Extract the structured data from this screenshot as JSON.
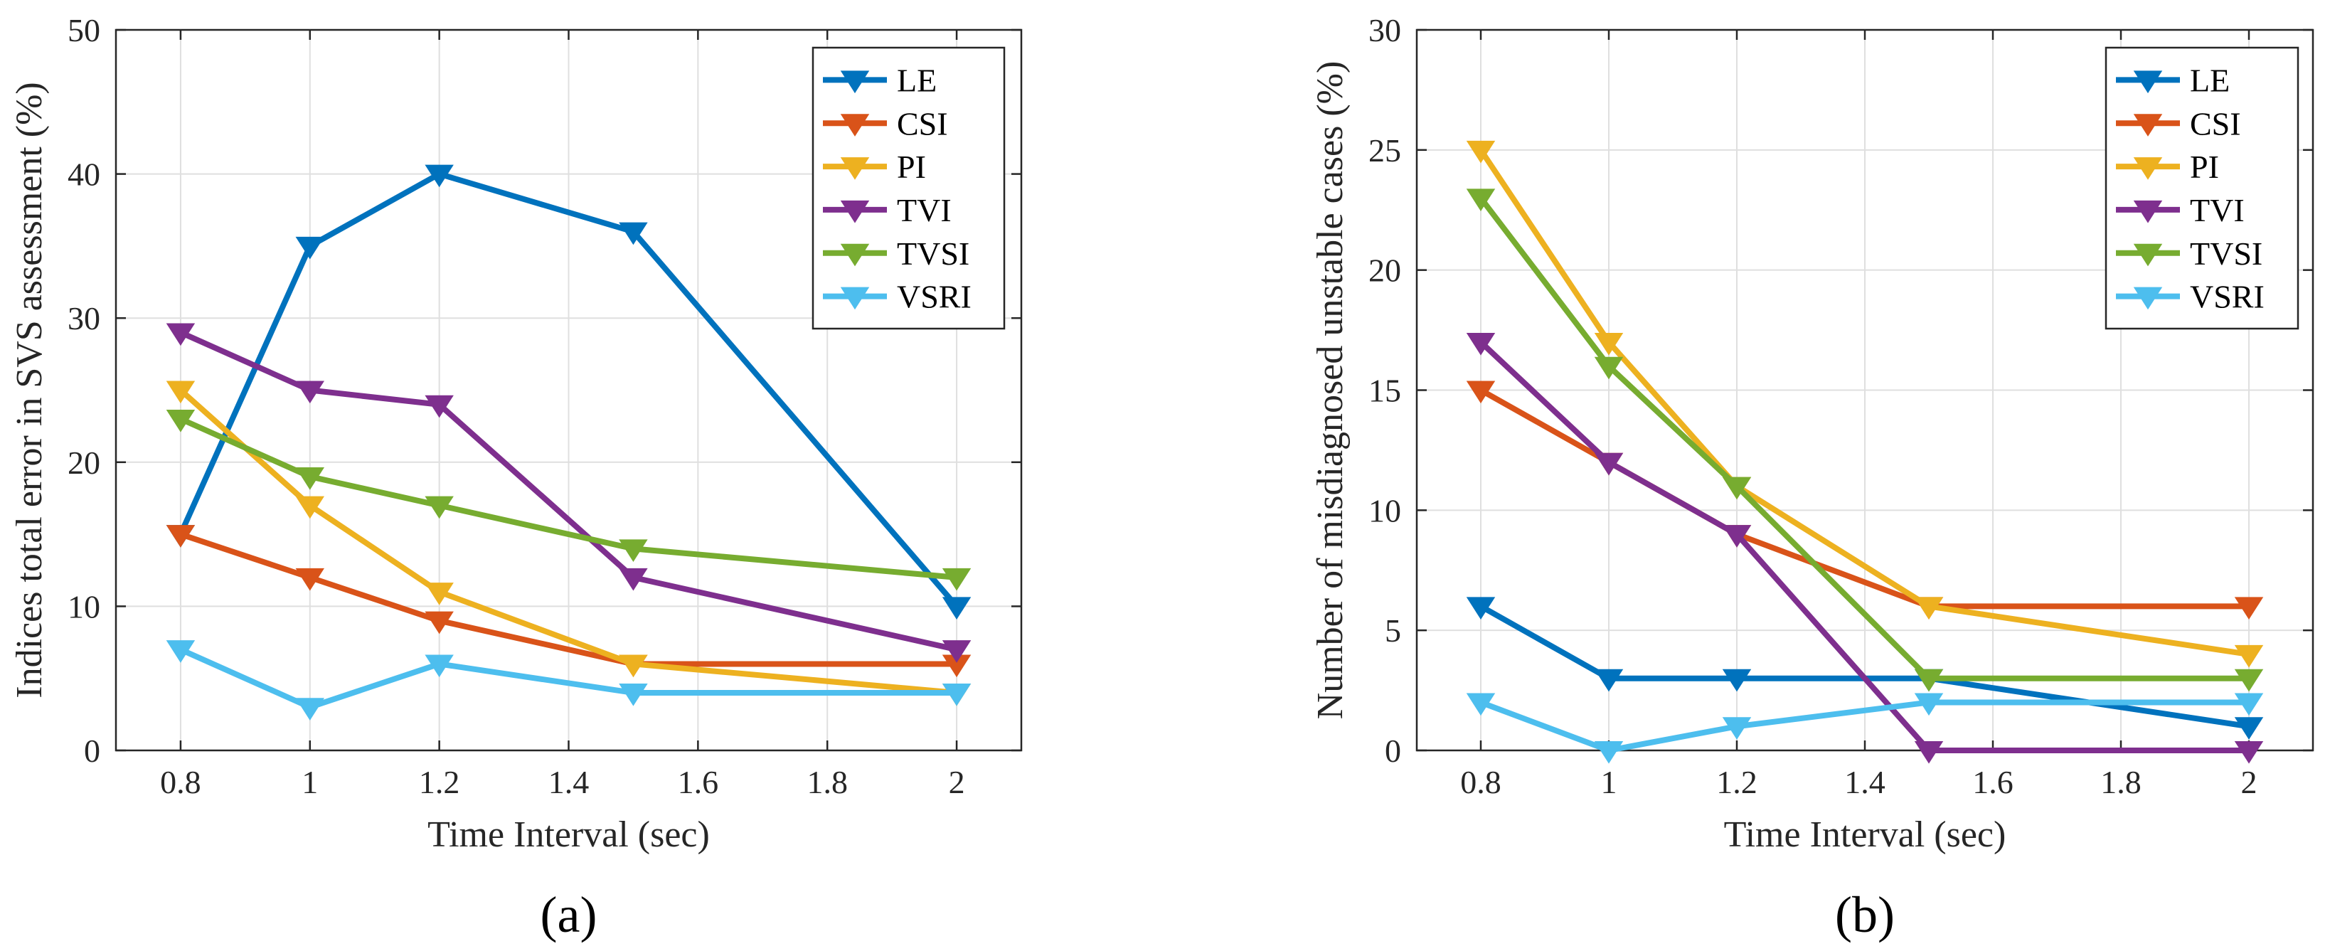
{
  "chart_data": [
    {
      "type": "line",
      "panel_label": "(a)",
      "title": "",
      "xlabel": "Time Interval (sec)",
      "ylabel": "Indices total error in SVS assessment (%)",
      "xlim": [
        0.7,
        2.1
      ],
      "ylim": [
        0,
        50
      ],
      "xticks": [
        0.8,
        1,
        1.2,
        1.4,
        1.6,
        1.8,
        2
      ],
      "xtick_labels": [
        "0.8",
        "1",
        "1.2",
        "1.4",
        "1.6",
        "1.8",
        "2"
      ],
      "yticks": [
        0,
        10,
        20,
        30,
        40,
        50
      ],
      "ytick_labels": [
        "0",
        "10",
        "20",
        "30",
        "40",
        "50"
      ],
      "grid": true,
      "legend_position": "top-right",
      "x": [
        0.8,
        1,
        1.2,
        1.5,
        2
      ],
      "series": [
        {
          "name": "LE",
          "color": "#0072BD",
          "values": [
            15,
            35,
            40,
            36,
            10
          ]
        },
        {
          "name": "CSI",
          "color": "#D95319",
          "values": [
            15,
            12,
            9,
            6,
            6
          ]
        },
        {
          "name": "PI",
          "color": "#EDB120",
          "values": [
            25,
            17,
            11,
            6,
            4
          ]
        },
        {
          "name": "TVI",
          "color": "#7E2F8E",
          "values": [
            29,
            25,
            24,
            12,
            7
          ]
        },
        {
          "name": "TVSI",
          "color": "#77AC30",
          "values": [
            23,
            19,
            17,
            14,
            12
          ]
        },
        {
          "name": "VSRI",
          "color": "#4DBEEE",
          "values": [
            7,
            3,
            6,
            4,
            4
          ]
        }
      ]
    },
    {
      "type": "line",
      "panel_label": "(b)",
      "title": "",
      "xlabel": "Time Interval (sec)",
      "ylabel": "Number of misdiagnosed unstable cases (%)",
      "xlim": [
        0.7,
        2.1
      ],
      "ylim": [
        0,
        30
      ],
      "xticks": [
        0.8,
        1,
        1.2,
        1.4,
        1.6,
        1.8,
        2
      ],
      "xtick_labels": [
        "0.8",
        "1",
        "1.2",
        "1.4",
        "1.6",
        "1.8",
        "2"
      ],
      "yticks": [
        0,
        5,
        10,
        15,
        20,
        25,
        30
      ],
      "ytick_labels": [
        "0",
        "5",
        "10",
        "15",
        "20",
        "25",
        "30"
      ],
      "grid": true,
      "legend_position": "top-right",
      "x": [
        0.8,
        1,
        1.2,
        1.5,
        2
      ],
      "series": [
        {
          "name": "LE",
          "color": "#0072BD",
          "values": [
            6,
            3,
            3,
            3,
            1
          ]
        },
        {
          "name": "CSI",
          "color": "#D95319",
          "values": [
            15,
            12,
            9,
            6,
            6
          ]
        },
        {
          "name": "PI",
          "color": "#EDB120",
          "values": [
            25,
            17,
            11,
            6,
            4
          ]
        },
        {
          "name": "TVI",
          "color": "#7E2F8E",
          "values": [
            17,
            12,
            9,
            0,
            0
          ]
        },
        {
          "name": "TVSI",
          "color": "#77AC30",
          "values": [
            23,
            16,
            11,
            3,
            3
          ]
        },
        {
          "name": "VSRI",
          "color": "#4DBEEE",
          "values": [
            2,
            0,
            1,
            2,
            2
          ]
        }
      ]
    }
  ]
}
